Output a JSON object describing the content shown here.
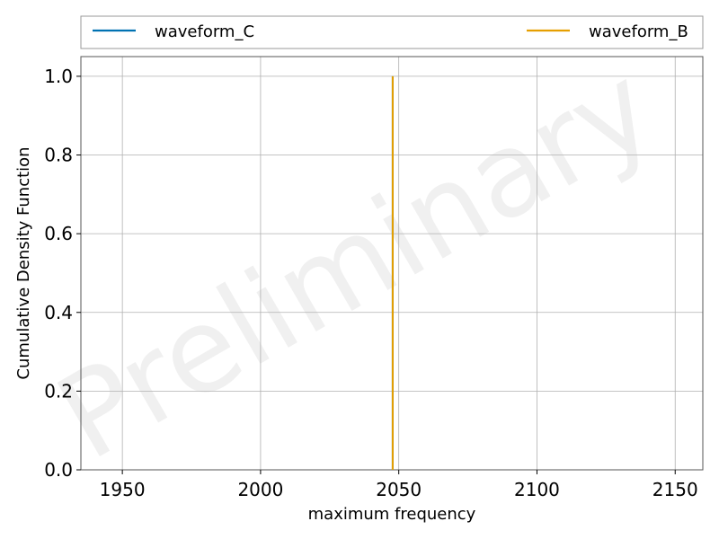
{
  "chart_data": {
    "type": "line",
    "xlabel": "maximum frequency",
    "ylabel": "Cumulative Density Function",
    "xlim": [
      1935,
      2160
    ],
    "ylim": [
      0,
      1.05
    ],
    "xticks": [
      1950,
      2000,
      2050,
      2100,
      2150
    ],
    "yticks": [
      0.0,
      0.2,
      0.4,
      0.6,
      0.8,
      1.0
    ],
    "xtick_labels": [
      "1950",
      "2000",
      "2050",
      "2100",
      "2150"
    ],
    "ytick_labels": [
      "0.0",
      "0.2",
      "0.4",
      "0.6",
      "0.8",
      "1.0"
    ],
    "grid": true,
    "legend_position": "top",
    "watermark": "Preliminary",
    "series": [
      {
        "name": "waveform_C",
        "color": "#0072b2",
        "x": [
          2047.8,
          2047.8
        ],
        "y": [
          0.0,
          1.0
        ]
      },
      {
        "name": "waveform_B",
        "color": "#e69f00",
        "x": [
          2047.8,
          2047.8
        ],
        "y": [
          0.0,
          1.0
        ]
      }
    ]
  }
}
